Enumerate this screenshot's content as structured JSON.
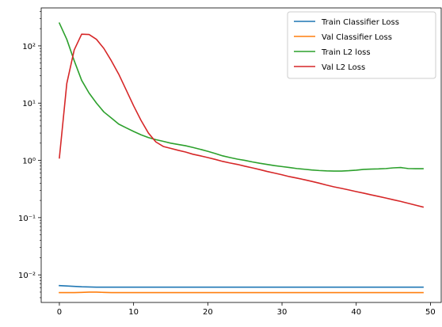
{
  "chart_data": {
    "type": "line",
    "title": "",
    "xlabel": "",
    "ylabel": "",
    "yscale": "log",
    "xlim": [
      -2.45,
      51.45
    ],
    "ylim": [
      0.0033,
      460
    ],
    "grid": false,
    "legend_position": "top-right",
    "x_ticks": [
      0,
      10,
      20,
      30,
      40,
      50
    ],
    "y_ticks": [
      {
        "value": 0.01,
        "label": "10⁻²"
      },
      {
        "value": 0.1,
        "label": "10⁻¹"
      },
      {
        "value": 1,
        "label": "10⁰"
      },
      {
        "value": 10,
        "label": "10¹"
      },
      {
        "value": 100,
        "label": "10²"
      }
    ],
    "x": [
      0,
      1,
      2,
      3,
      4,
      5,
      6,
      7,
      8,
      9,
      10,
      11,
      12,
      13,
      14,
      15,
      16,
      17,
      18,
      19,
      20,
      21,
      22,
      23,
      24,
      25,
      26,
      27,
      28,
      29,
      30,
      31,
      32,
      33,
      34,
      35,
      36,
      37,
      38,
      39,
      40,
      41,
      42,
      43,
      44,
      45,
      46,
      47,
      48,
      49
    ],
    "series": [
      {
        "name": "Train Classifier Loss",
        "color": "#1f77b4",
        "values": [
          0.0065,
          0.0064,
          0.0063,
          0.0062,
          0.00615,
          0.0061,
          0.0061,
          0.0061,
          0.0061,
          0.0061,
          0.0061,
          0.0061,
          0.0061,
          0.0061,
          0.0061,
          0.0061,
          0.0061,
          0.0061,
          0.0061,
          0.0061,
          0.0061,
          0.0061,
          0.0061,
          0.0061,
          0.0061,
          0.0061,
          0.0061,
          0.0061,
          0.0061,
          0.0061,
          0.0061,
          0.0061,
          0.0061,
          0.0061,
          0.0061,
          0.0061,
          0.0061,
          0.0061,
          0.0061,
          0.0061,
          0.0061,
          0.0061,
          0.0061,
          0.0061,
          0.0061,
          0.0061,
          0.0061,
          0.0061,
          0.0061,
          0.0061
        ]
      },
      {
        "name": "Val Classifier Loss",
        "color": "#ff7f0e",
        "values": [
          0.0049,
          0.0049,
          0.0049,
          0.00495,
          0.005,
          0.005,
          0.00495,
          0.0049,
          0.0049,
          0.0049,
          0.0049,
          0.0049,
          0.0049,
          0.0049,
          0.0049,
          0.0049,
          0.0049,
          0.0049,
          0.0049,
          0.0049,
          0.0049,
          0.0049,
          0.0049,
          0.0049,
          0.0049,
          0.0049,
          0.0049,
          0.0049,
          0.0049,
          0.0049,
          0.0049,
          0.0049,
          0.0049,
          0.0049,
          0.0049,
          0.0049,
          0.0049,
          0.0049,
          0.0049,
          0.0049,
          0.0049,
          0.0049,
          0.0049,
          0.0049,
          0.0049,
          0.0049,
          0.0049,
          0.0049,
          0.0049,
          0.0049
        ]
      },
      {
        "name": "Train L2 loss",
        "color": "#2ca02c",
        "values": [
          250,
          130,
          55,
          25,
          15,
          10,
          7,
          5.5,
          4.3,
          3.7,
          3.2,
          2.8,
          2.5,
          2.3,
          2.15,
          2.0,
          1.9,
          1.8,
          1.68,
          1.56,
          1.44,
          1.32,
          1.2,
          1.12,
          1.05,
          1.0,
          0.94,
          0.89,
          0.85,
          0.81,
          0.78,
          0.75,
          0.72,
          0.7,
          0.68,
          0.665,
          0.655,
          0.65,
          0.65,
          0.66,
          0.675,
          0.695,
          0.705,
          0.71,
          0.72,
          0.74,
          0.75,
          0.72,
          0.715,
          0.715
        ]
      },
      {
        "name": "Val L2 Loss",
        "color": "#d62728",
        "values": [
          1.1,
          22,
          85,
          160,
          158,
          130,
          90,
          55,
          32,
          17,
          9,
          5,
          3,
          2.1,
          1.75,
          1.62,
          1.5,
          1.4,
          1.28,
          1.2,
          1.12,
          1.04,
          0.96,
          0.9,
          0.85,
          0.79,
          0.74,
          0.69,
          0.64,
          0.6,
          0.56,
          0.52,
          0.49,
          0.46,
          0.43,
          0.4,
          0.37,
          0.345,
          0.325,
          0.305,
          0.285,
          0.268,
          0.25,
          0.235,
          0.22,
          0.205,
          0.192,
          0.178,
          0.165,
          0.153
        ]
      }
    ]
  }
}
